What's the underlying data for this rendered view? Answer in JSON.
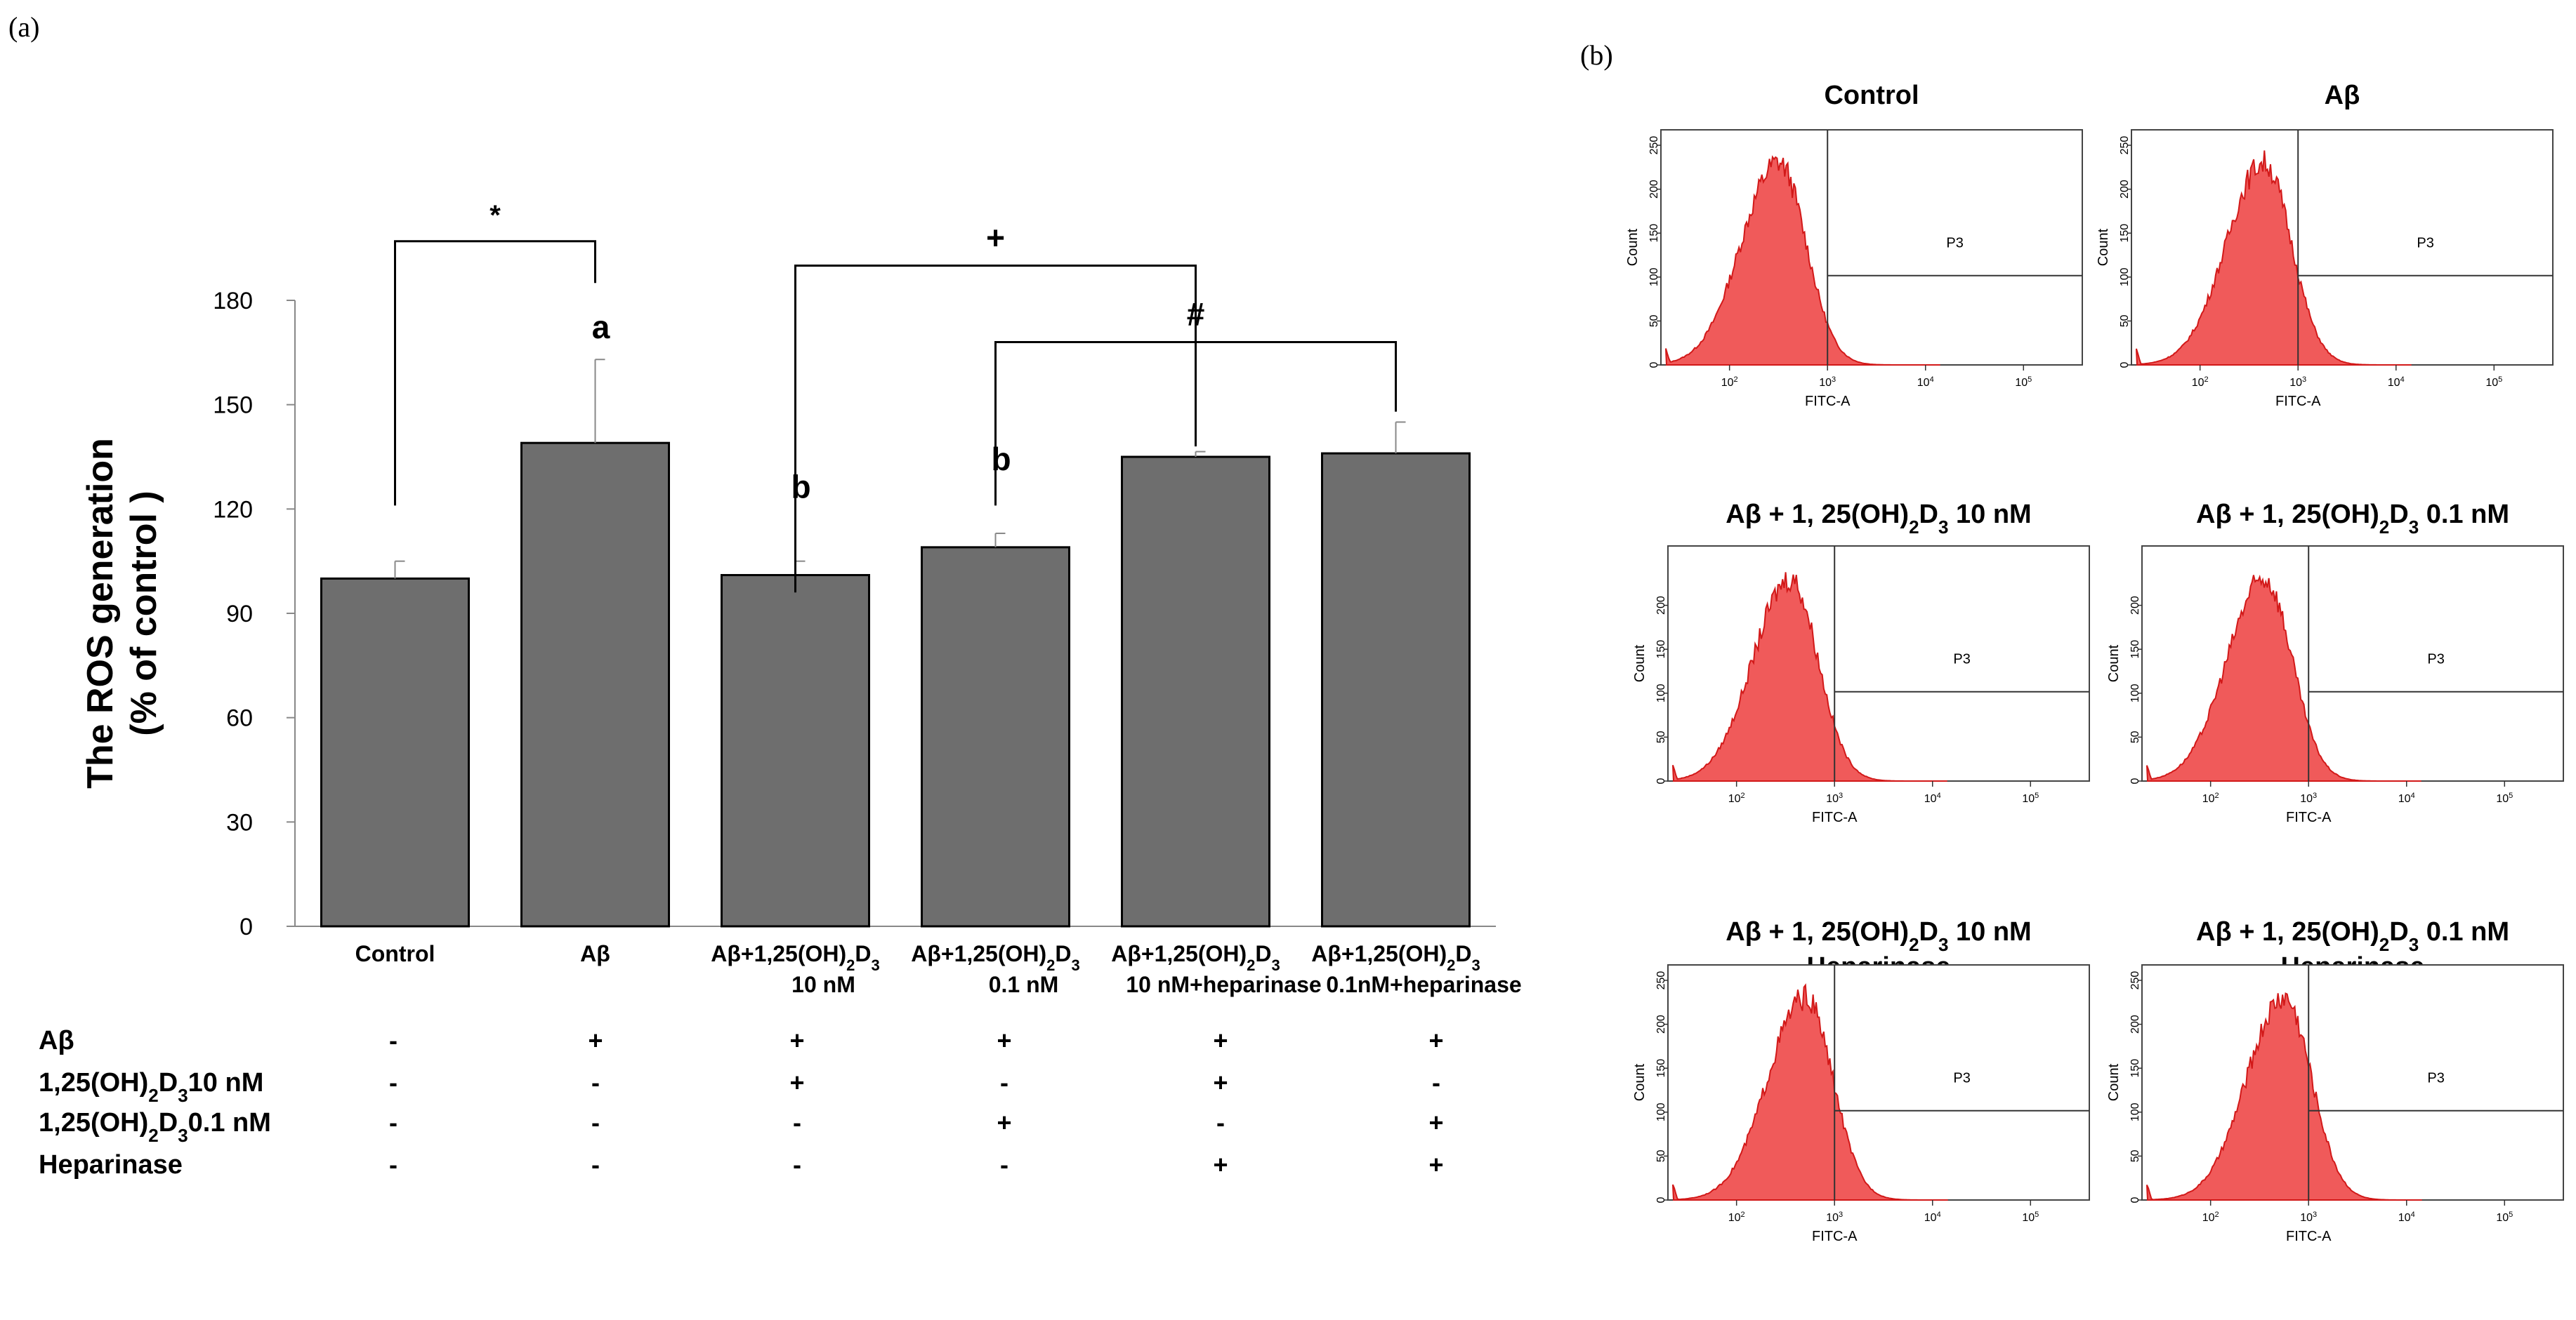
{
  "panel_labels": {
    "a": "(a)",
    "b": "(b)"
  },
  "colors": {
    "bar_fill": "#6e6e6e",
    "histogram_fill": "#f05a5a",
    "histogram_edge": "#d21919"
  },
  "chart_data": {
    "type": "bar",
    "ylabel_line1": "The ROS generation",
    "ylabel_line2": "(% of control )",
    "ylim": [
      0,
      180
    ],
    "yticks": [
      0,
      30,
      60,
      90,
      120,
      150,
      180
    ],
    "categories": [
      {
        "line1": "Control",
        "line2": ""
      },
      {
        "line1": "Aβ",
        "line2": ""
      },
      {
        "line1": "Aβ+1,25(OH)",
        "sub1": "2",
        "mid": "D",
        "sub2": "3",
        "line2": "10 nM"
      },
      {
        "line1": "Aβ+1,25(OH)",
        "sub1": "2",
        "mid": "D",
        "sub2": "3",
        "line2": "0.1 nM"
      },
      {
        "line1": "Aβ+1,25(OH)",
        "sub1": "2",
        "mid": "D",
        "sub2": "3",
        "line2": "10 nM+heparinase"
      },
      {
        "line1": "Aβ+1,25(OH)",
        "sub1": "2",
        "mid": "D",
        "sub2": "3",
        "line2": "0.1nM+heparinase"
      }
    ],
    "values": [
      100,
      139,
      101,
      109,
      135,
      136
    ],
    "errors": [
      5,
      24,
      4,
      4,
      1.5,
      9
    ],
    "bar_letters": [
      "",
      "a",
      "b",
      "b",
      "",
      ""
    ],
    "significance": [
      {
        "symbol": "*",
        "from": 0,
        "to": 1,
        "level": 197
      },
      {
        "symbol": "+",
        "from": 2,
        "to": 4,
        "level": 190
      },
      {
        "symbol": "#",
        "from": 3,
        "to": 5,
        "level": 168
      }
    ]
  },
  "treatment_table": {
    "rows": [
      {
        "label": "Aβ",
        "values": [
          "-",
          "+",
          "+",
          "+",
          "+",
          "+"
        ]
      },
      {
        "label": "1,25(OH)",
        "sub1": "2",
        "mid": "D",
        "sub2": "3",
        "tail": "10 nM",
        "values": [
          "-",
          "-",
          "+",
          "-",
          "+",
          "-"
        ]
      },
      {
        "label": "1,25(OH)",
        "sub1": "2",
        "mid": "D",
        "sub2": "3",
        "tail": "0.1 nM",
        "values": [
          "-",
          "-",
          "-",
          "+",
          "-",
          "+"
        ]
      },
      {
        "label": "Heparinase",
        "values": [
          "-",
          "-",
          "-",
          "-",
          "+",
          "+"
        ]
      }
    ]
  },
  "flow_panels": [
    {
      "title": "Control",
      "title2": "",
      "gate": "P3",
      "xlabel": "FITC-A",
      "ylabel": "Count",
      "peak_exp": 2.5,
      "yticks": [
        "0",
        "50",
        "100",
        "150",
        "200",
        "250"
      ],
      "xticks": [
        "10",
        "10",
        "10",
        "10"
      ],
      "xexp": [
        "2",
        "3",
        "4",
        "5"
      ]
    },
    {
      "title": "Aβ",
      "title2": "",
      "gate": "P3",
      "xlabel": "FITC-A",
      "ylabel": "Count",
      "peak_exp": 2.65,
      "yticks": [
        "0",
        "50",
        "100",
        "150",
        "200",
        "250"
      ],
      "xticks": [
        "10",
        "10",
        "10",
        "10"
      ],
      "xexp": [
        "2",
        "3",
        "4",
        "5"
      ]
    },
    {
      "title": "Aβ + 1, 25(OH)",
      "sub1": "2",
      "mid": "D",
      "sub2": "3",
      "tail": "  10 nM",
      "title2": "",
      "gate": "P3",
      "xlabel": "FITC-A",
      "ylabel": "Count",
      "peak_exp": 2.55,
      "yticks": [
        "0",
        "50",
        "100",
        "150",
        "200"
      ],
      "xticks": [
        "10",
        "10",
        "10",
        "10"
      ],
      "xexp": [
        "2",
        "3",
        "4",
        "5"
      ]
    },
    {
      "title": "Aβ + 1, 25(OH)",
      "sub1": "2",
      "mid": "D",
      "sub2": "3",
      "tail": "  0.1 nM",
      "title2": "",
      "gate": "P3",
      "xlabel": "FITC-A",
      "ylabel": "Count",
      "peak_exp": 2.55,
      "yticks": [
        "0",
        "50",
        "100",
        "150",
        "200"
      ],
      "xticks": [
        "10",
        "10",
        "10",
        "10"
      ],
      "xexp": [
        "2",
        "3",
        "4",
        "5"
      ]
    },
    {
      "title": "Aβ + 1, 25(OH)",
      "sub1": "2",
      "mid": "D",
      "sub2": "3",
      "tail": "  10 nM",
      "title2": "Heparinase",
      "gate": "P3",
      "xlabel": "FITC-A",
      "ylabel": "Count",
      "peak_exp": 2.7,
      "yticks": [
        "0",
        "50",
        "100",
        "150",
        "200",
        "250"
      ],
      "xticks": [
        "10",
        "10",
        "10",
        "10"
      ],
      "xexp": [
        "2",
        "3",
        "4",
        "5"
      ]
    },
    {
      "title": "Aβ + 1, 25(OH)",
      "sub1": "2",
      "mid": "D",
      "sub2": "3",
      "tail": "  0.1 nM",
      "title2": "Heparinase",
      "gate": "P3",
      "xlabel": "FITC-A",
      "ylabel": "Count",
      "peak_exp": 2.75,
      "yticks": [
        "0",
        "50",
        "100",
        "150",
        "200",
        "250"
      ],
      "xticks": [
        "10",
        "10",
        "10",
        "10"
      ],
      "xexp": [
        "2",
        "3",
        "4",
        "5"
      ]
    }
  ]
}
